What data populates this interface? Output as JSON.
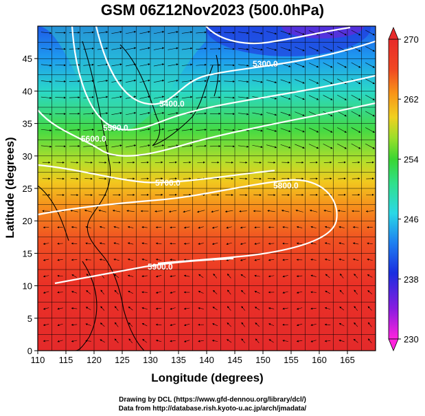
{
  "title": "GSM 06Z12Nov2023 (500.0hPa)",
  "axes": {
    "xlabel": "Longitude (degrees)",
    "ylabel": "Latitude  (degrees)",
    "x_ticks": [
      "110",
      "115",
      "120",
      "125",
      "130",
      "135",
      "140",
      "145",
      "150",
      "155",
      "160",
      "165"
    ],
    "y_ticks": [
      "0",
      "5",
      "10",
      "15",
      "20",
      "25",
      "30",
      "35",
      "40",
      "45"
    ]
  },
  "colorbar": {
    "min": 230,
    "max": 270,
    "tick_labels": [
      "270",
      "262",
      "254",
      "246",
      "238",
      "230"
    ],
    "colors": [
      "#ff22dd",
      "#8a1ce0",
      "#1a2ee0",
      "#1e7ff0",
      "#2ad8e6",
      "#30e08a",
      "#3ad632",
      "#9adf2a",
      "#f0d020",
      "#f89418",
      "#f04822",
      "#e82a2a"
    ]
  },
  "contours": {
    "labels": [
      "5300.0",
      "5400.0",
      "5500.0",
      "5600.0",
      "5700.0",
      "5800.0",
      "5900.0"
    ]
  },
  "credits": {
    "line1": "Drawing by DCL (https://www.gfd-dennou.org/library/dcl/)",
    "line2": "Data from http://database.rish.kyoto-u.ac.jp/arch/jmadata/"
  },
  "chart_data": {
    "type": "heatmap",
    "title": "GSM 06Z12Nov2023 (500.0hPa)",
    "xlabel": "Longitude (degrees)",
    "ylabel": "Latitude  (degrees)",
    "xlim": [
      110,
      170
    ],
    "ylim": [
      0,
      50
    ],
    "color_variable_range": [
      230,
      270
    ],
    "height_contours_m": [
      5300,
      5400,
      5500,
      5600,
      5700,
      5800,
      5900
    ]
  }
}
